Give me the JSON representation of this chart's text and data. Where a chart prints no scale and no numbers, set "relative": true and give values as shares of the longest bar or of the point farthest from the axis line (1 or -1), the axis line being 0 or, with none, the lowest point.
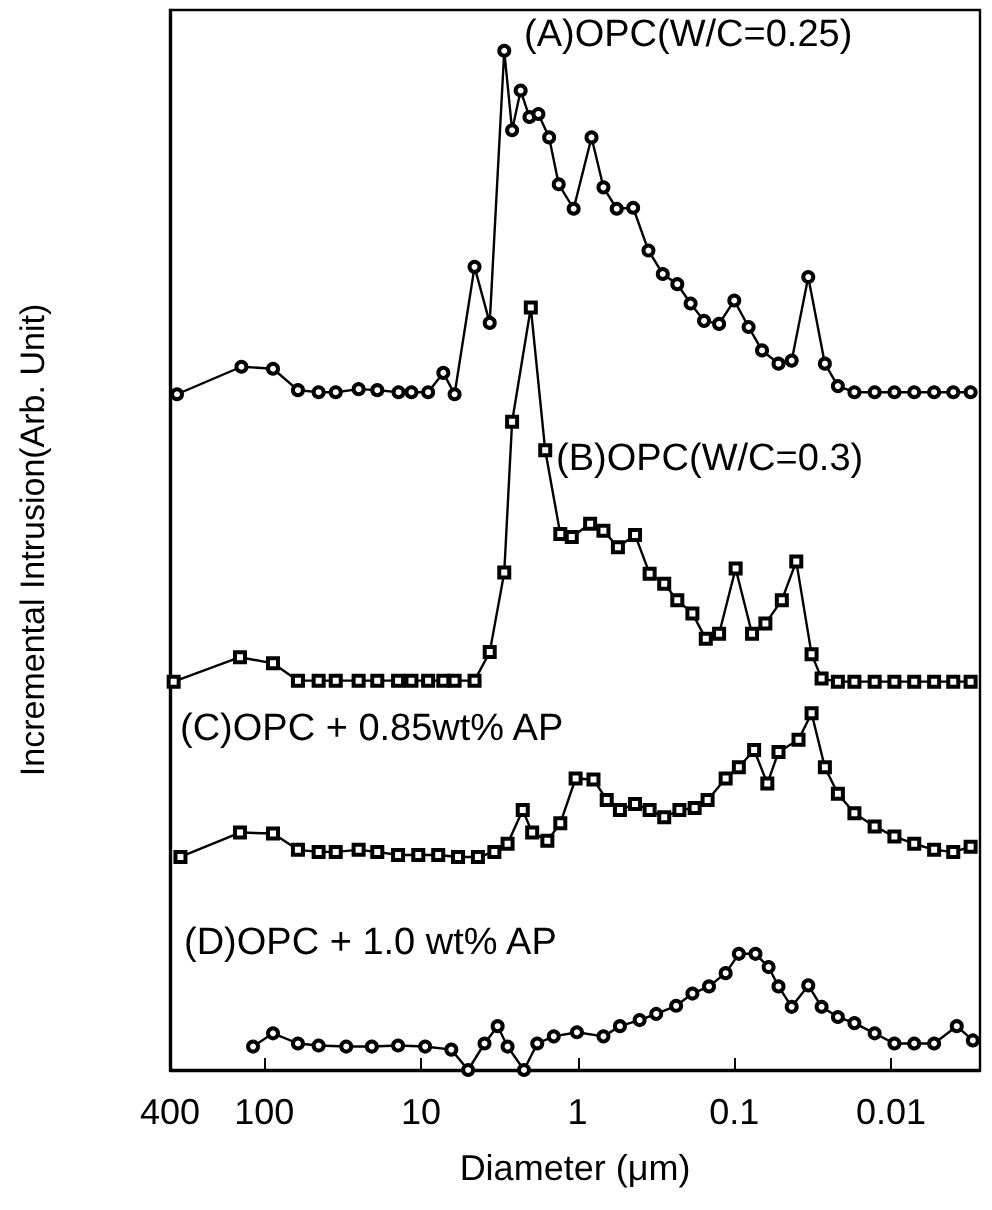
{
  "chart_data": {
    "type": "line",
    "relative": true,
    "xlabel": "Diameter (μm)",
    "ylabel": "Incremental Intrusion(Arb. Unit)",
    "log": "x",
    "xlim": [
      400,
      0.0027
    ],
    "xticks": [
      400,
      100,
      10,
      1,
      0.1,
      0.01
    ],
    "grid": false,
    "legend": false,
    "line_style": "solid",
    "series": [
      {
        "name": "(A)OPC(W/C=0.25)",
        "color": "#000000",
        "marker": "circle",
        "x": [
          361,
          140,
          88,
          61,
          45,
          35,
          25,
          19,
          13.9,
          11.5,
          9.0,
          7.2,
          6.1,
          4.55,
          3.64,
          2.94,
          2.62,
          2.31,
          2.03,
          1.78,
          1.52,
          1.32,
          1.06,
          0.815,
          0.684,
          0.563,
          0.442,
          0.353,
          0.286,
          0.231,
          0.19,
          0.156,
          0.125,
          0.1,
          0.081,
          0.0665,
          0.0522,
          0.043,
          0.0337,
          0.0264,
          0.0218,
          0.0171,
          0.0127,
          0.0095,
          0.0071,
          0.0053,
          0.004,
          0.0031
        ],
        "values": [
          0.663,
          0.69,
          0.688,
          0.667,
          0.665,
          0.665,
          0.668,
          0.667,
          0.665,
          0.665,
          0.665,
          0.684,
          0.663,
          0.788,
          0.733,
          1.0,
          0.922,
          0.961,
          0.935,
          0.938,
          0.915,
          0.869,
          0.845,
          0.915,
          0.866,
          0.845,
          0.846,
          0.804,
          0.781,
          0.771,
          0.752,
          0.735,
          0.732,
          0.755,
          0.729,
          0.706,
          0.693,
          0.696,
          0.778,
          0.693,
          0.671,
          0.665,
          0.665,
          0.665,
          0.665,
          0.665,
          0.665,
          0.665
        ]
      },
      {
        "name": "(B)OPC(W/C=0.3)",
        "color": "#000000",
        "marker": "square",
        "x": [
          379,
          143,
          88,
          61,
          45,
          35,
          25,
          19,
          14,
          11.5,
          9.0,
          7.2,
          6.1,
          4.55,
          3.64,
          2.94,
          2.62,
          1.99,
          1.61,
          1.29,
          1.09,
          0.832,
          0.684,
          0.553,
          0.43,
          0.347,
          0.28,
          0.231,
          0.185,
          0.152,
          0.125,
          0.098,
          0.077,
          0.0633,
          0.0497,
          0.0402,
          0.0321,
          0.0277,
          0.0218,
          0.0171,
          0.0127,
          0.0095,
          0.0071,
          0.0053,
          0.004,
          0.0031
        ],
        "values": [
          0.381,
          0.405,
          0.399,
          0.382,
          0.382,
          0.382,
          0.382,
          0.382,
          0.382,
          0.382,
          0.382,
          0.382,
          0.382,
          0.382,
          0.41,
          0.488,
          0.636,
          0.748,
          0.608,
          0.526,
          0.523,
          0.536,
          0.529,
          0.513,
          0.525,
          0.487,
          0.477,
          0.461,
          0.448,
          0.423,
          0.428,
          0.492,
          0.428,
          0.438,
          0.461,
          0.499,
          0.408,
          0.384,
          0.381,
          0.381,
          0.381,
          0.381,
          0.381,
          0.381,
          0.381,
          0.381
        ]
      },
      {
        "name": "(C)OPC + 0.85wt% AP",
        "color": "#000000",
        "marker": "square",
        "x": [
          343,
          143,
          88,
          61,
          45,
          35,
          25,
          19,
          14,
          10.4,
          7.76,
          5.8,
          4.33,
          3.4,
          2.8,
          2.24,
          1.95,
          1.56,
          1.29,
          1.03,
          0.792,
          0.652,
          0.537,
          0.43,
          0.347,
          0.28,
          0.224,
          0.179,
          0.148,
          0.1135,
          0.0935,
          0.0747,
          0.0615,
          0.0522,
          0.0389,
          0.0321,
          0.0264,
          0.0218,
          0.0171,
          0.0127,
          0.0095,
          0.0071,
          0.0053,
          0.004,
          0.0031
        ],
        "values": [
          0.209,
          0.233,
          0.232,
          0.216,
          0.214,
          0.214,
          0.216,
          0.214,
          0.211,
          0.211,
          0.211,
          0.209,
          0.209,
          0.214,
          0.222,
          0.255,
          0.233,
          0.225,
          0.242,
          0.286,
          0.285,
          0.265,
          0.255,
          0.261,
          0.255,
          0.248,
          0.255,
          0.257,
          0.265,
          0.286,
          0.297,
          0.314,
          0.281,
          0.312,
          0.324,
          0.35,
          0.297,
          0.271,
          0.252,
          0.239,
          0.229,
          0.222,
          0.216,
          0.214,
          0.219
        ]
      },
      {
        "name": "(D)OPC + 1.0 wt% AP",
        "color": "#000000",
        "marker": "circle",
        "x": [
          118,
          88,
          61,
          45,
          30,
          20.6,
          14,
          9.4,
          6.4,
          5.0,
          3.93,
          3.24,
          2.8,
          2.2,
          1.81,
          1.42,
          1.01,
          0.684,
          0.537,
          0.402,
          0.315,
          0.235,
          0.185,
          0.145,
          0.1135,
          0.0935,
          0.0732,
          0.0604,
          0.0522,
          0.043,
          0.0337,
          0.0277,
          0.0218,
          0.0171,
          0.0127,
          0.0095,
          0.0071,
          0.0053,
          0.0038,
          0.003
        ],
        "values": [
          0.023,
          0.036,
          0.026,
          0.024,
          0.023,
          0.023,
          0.024,
          0.023,
          0.02,
          0,
          0.026,
          0.043,
          0.023,
          0,
          0.026,
          0.033,
          0.037,
          0.033,
          0.043,
          0.049,
          0.055,
          0.063,
          0.075,
          0.082,
          0.095,
          0.114,
          0.114,
          0.101,
          0.082,
          0.062,
          0.083,
          0.062,
          0.052,
          0.046,
          0.036,
          0.026,
          0.026,
          0.026,
          0.043,
          0.029
        ]
      }
    ]
  }
}
